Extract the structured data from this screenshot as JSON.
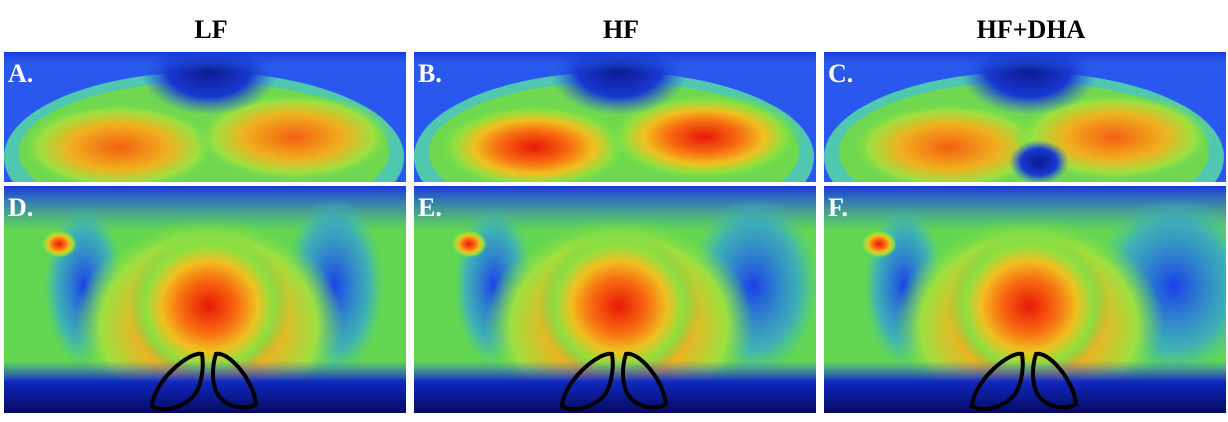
{
  "columns": [
    "LF",
    "HF",
    "HF+DHA"
  ],
  "panels": [
    {
      "label": "A."
    },
    {
      "label": "B."
    },
    {
      "label": "C."
    },
    {
      "label": "D."
    },
    {
      "label": "E."
    },
    {
      "label": "F."
    }
  ]
}
